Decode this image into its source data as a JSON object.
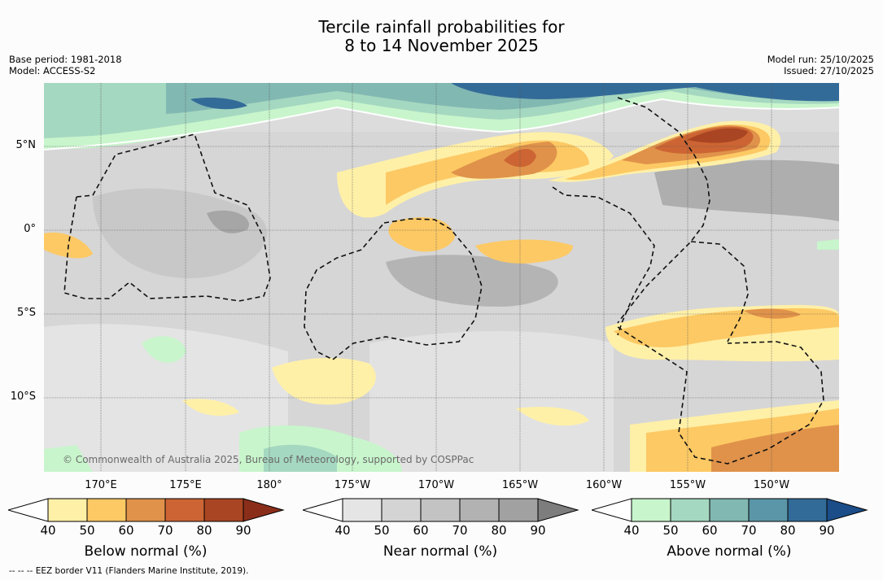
{
  "title": {
    "line1": "Tercile rainfall probabilities for",
    "line2": "8 to 14 November 2025"
  },
  "meta": {
    "base_period": "Base period: 1981-2018",
    "model": "Model: ACCESS-S2",
    "model_run": "Model run: 25/10/2025",
    "issued": "Issued: 27/10/2025"
  },
  "map": {
    "latitude_labels": [
      "5°N",
      "0°",
      "5°S",
      "10°S"
    ],
    "longitude_labels": [
      "170°E",
      "175°E",
      "180°",
      "175°W",
      "170°W",
      "165°W",
      "160°W",
      "155°W",
      "150°W"
    ],
    "copyright": "© Commonwealth of Australia 2025, Bureau of Meteorology, supported by COSPPac"
  },
  "colorbars": [
    {
      "name": "below-normal",
      "label": "Below normal (%)",
      "ticks": [
        "40",
        "50",
        "60",
        "70",
        "80",
        "90"
      ],
      "colors": [
        "#fff0a8",
        "#fdc964",
        "#e0924a",
        "#cc6533",
        "#a94522",
        "#8a2e1a"
      ]
    },
    {
      "name": "near-normal",
      "label": "Near normal (%)",
      "ticks": [
        "40",
        "50",
        "60",
        "70",
        "80",
        "90"
      ],
      "colors": [
        "#e5e5e5",
        "#d4d4d4",
        "#c3c3c3",
        "#b2b2b2",
        "#a1a1a1",
        "#7d7d7d"
      ]
    },
    {
      "name": "above-normal",
      "label": "Above normal (%)",
      "ticks": [
        "40",
        "50",
        "60",
        "70",
        "80",
        "90"
      ],
      "colors": [
        "#c8f5cc",
        "#a5d8c0",
        "#82b8b2",
        "#5a96a8",
        "#336b98",
        "#1b4d88"
      ]
    }
  ],
  "footnote": "--  --  -- EEZ border V11 (Flanders Marine Institute, 2019)."
}
